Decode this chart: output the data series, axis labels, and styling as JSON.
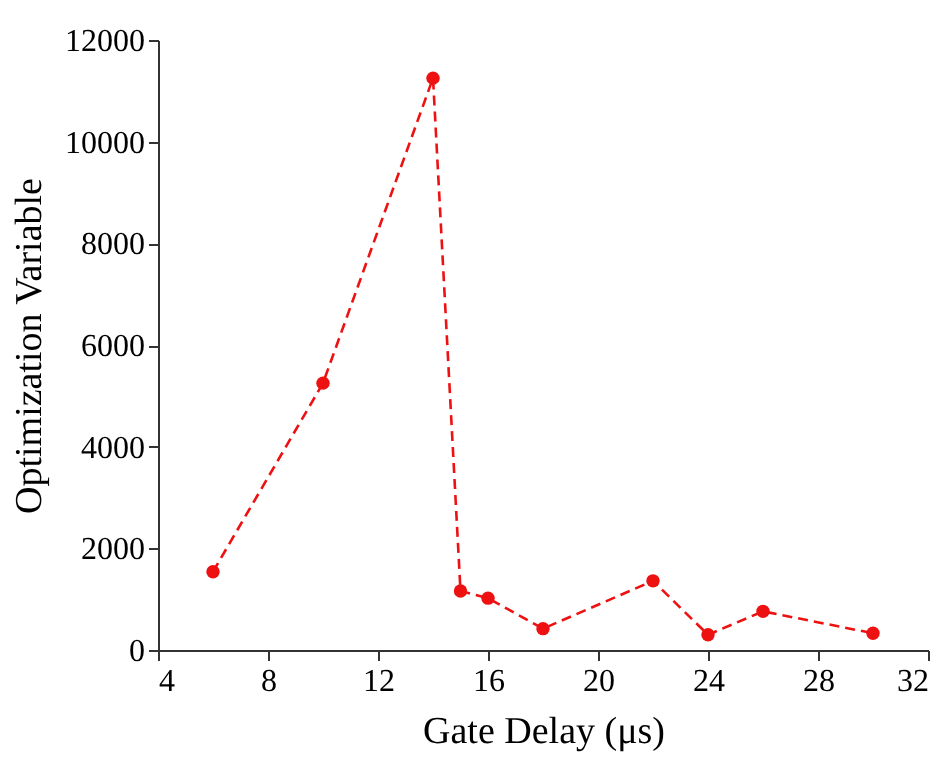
{
  "chart_data": {
    "type": "line",
    "xlabel": "Gate Delay (μs)",
    "ylabel": "Optimization Variable",
    "x": [
      6,
      10,
      14,
      15,
      16,
      18,
      22,
      24,
      26,
      30
    ],
    "series": [
      {
        "color": "#ee1111",
        "values": [
          1540,
          5250,
          11250,
          1160,
          1020,
          420,
          1360,
          300,
          760,
          330
        ]
      }
    ],
    "xlim": [
      4,
      32
    ],
    "xticks": [
      4,
      8,
      12,
      16,
      20,
      24,
      28,
      32
    ],
    "ylim": [
      0,
      12000
    ],
    "yticks": [
      0,
      2000,
      4000,
      6000,
      8000,
      10000,
      12000
    ],
    "grid": false,
    "legend": false,
    "marker": "circle",
    "line_style": "dashed"
  }
}
